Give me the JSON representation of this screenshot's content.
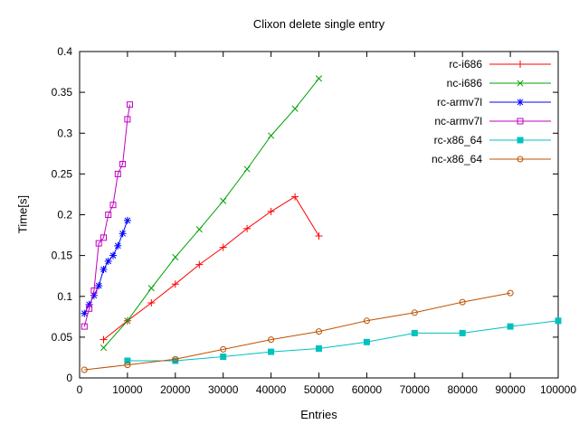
{
  "chart_data": {
    "type": "line",
    "title": "Clixon delete single entry",
    "xlabel": "Entries",
    "ylabel": "Time[s]",
    "xlim": [
      0,
      100000
    ],
    "ylim": [
      0,
      0.4
    ],
    "x_ticks": [
      0,
      10000,
      20000,
      30000,
      40000,
      50000,
      60000,
      70000,
      80000,
      90000,
      100000
    ],
    "y_ticks": [
      0,
      0.05,
      0.1,
      0.15,
      0.2,
      0.25,
      0.3,
      0.35,
      0.4
    ],
    "grid": false,
    "legend_position": "top-right-inside",
    "series": [
      {
        "name": "rc-i686",
        "color": "#ff0000",
        "marker": "plus",
        "x": [
          5000,
          10000,
          15000,
          20000,
          25000,
          30000,
          35000,
          40000,
          45000,
          50000
        ],
        "y": [
          0.047,
          0.07,
          0.092,
          0.115,
          0.139,
          0.16,
          0.183,
          0.204,
          0.222,
          0.174
        ]
      },
      {
        "name": "nc-i686",
        "color": "#00a000",
        "marker": "cross",
        "x": [
          5000,
          10000,
          15000,
          20000,
          25000,
          30000,
          35000,
          40000,
          45000,
          50000
        ],
        "y": [
          0.037,
          0.07,
          0.11,
          0.148,
          0.182,
          0.217,
          0.256,
          0.297,
          0.33,
          0.367
        ]
      },
      {
        "name": "rc-armv7l",
        "color": "#0000ff",
        "marker": "star",
        "x": [
          1000,
          2000,
          3000,
          4000,
          5000,
          6000,
          7000,
          8000,
          9000,
          10000
        ],
        "y": [
          0.079,
          0.09,
          0.101,
          0.113,
          0.133,
          0.143,
          0.15,
          0.162,
          0.177,
          0.193
        ]
      },
      {
        "name": "nc-armv7l",
        "color": "#c000c0",
        "marker": "square-open",
        "x": [
          1000,
          2000,
          3000,
          4000,
          5000,
          6000,
          7000,
          8000,
          9000,
          10000,
          10500
        ],
        "y": [
          0.063,
          0.085,
          0.107,
          0.165,
          0.172,
          0.2,
          0.212,
          0.25,
          0.262,
          0.317,
          0.335
        ]
      },
      {
        "name": "rc-x86_64",
        "color": "#00c0c0",
        "marker": "square-filled",
        "x": [
          10000,
          20000,
          30000,
          40000,
          50000,
          60000,
          70000,
          80000,
          90000,
          100000
        ],
        "y": [
          0.021,
          0.021,
          0.026,
          0.032,
          0.036,
          0.044,
          0.055,
          0.055,
          0.063,
          0.07
        ]
      },
      {
        "name": "nc-x86_64",
        "color": "#c05000",
        "marker": "circle-open",
        "x": [
          1000,
          10000,
          20000,
          30000,
          40000,
          50000,
          60000,
          70000,
          80000,
          90000
        ],
        "y": [
          0.01,
          0.016,
          0.023,
          0.035,
          0.047,
          0.057,
          0.07,
          0.08,
          0.093,
          0.104
        ]
      }
    ]
  }
}
